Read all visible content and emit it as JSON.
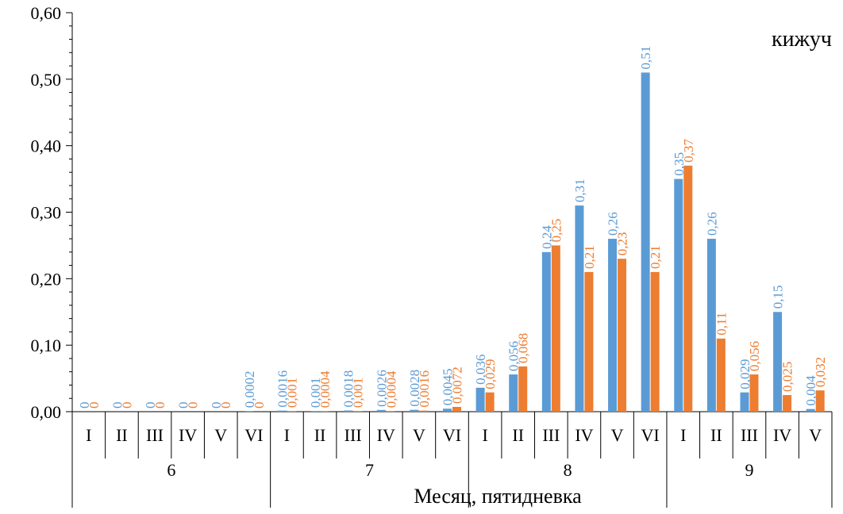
{
  "chart_data": {
    "type": "bar",
    "title": "кижуч",
    "xlabel": "Месяц, пятидневка",
    "ylabel": "",
    "ylim": [
      0,
      0.6
    ],
    "yticks": [
      "0,00",
      "0,10",
      "0,20",
      "0,30",
      "0,40",
      "0,50",
      "0,60"
    ],
    "yticks_values": [
      0,
      0.1,
      0.2,
      0.3,
      0.4,
      0.5,
      0.6
    ],
    "grid": false,
    "legend": "none",
    "categories": [
      "I",
      "II",
      "III",
      "IV",
      "V",
      "VI",
      "I",
      "II",
      "III",
      "IV",
      "V",
      "VI",
      "I",
      "II",
      "III",
      "IV",
      "V",
      "VI",
      "I",
      "II",
      "III",
      "IV",
      "V"
    ],
    "groups": [
      {
        "label": "6",
        "count": 6
      },
      {
        "label": "7",
        "count": 6
      },
      {
        "label": "8",
        "count": 6
      },
      {
        "label": "9",
        "count": 5
      }
    ],
    "series": [
      {
        "color": "#5B9BD5",
        "values": [
          0,
          0,
          0,
          0,
          0,
          0.0002,
          0.0016,
          0.001,
          0.0018,
          0.0026,
          0.0028,
          0.0045,
          0.036,
          0.056,
          0.24,
          0.31,
          0.26,
          0.51,
          0.35,
          0.26,
          0.029,
          0.15,
          0.004
        ],
        "labels": [
          "0",
          "0",
          "0",
          "0",
          "0",
          "0,0002",
          "0,0016",
          "0,001",
          "0,0018",
          "0,0026",
          "0,0028",
          "0,0045",
          "0,036",
          "0,056",
          "0,24",
          "0,31",
          "0,26",
          "0,51",
          "0,35",
          "0,26",
          "0,029",
          "0,15",
          "0,004"
        ]
      },
      {
        "color": "#ED7D31",
        "values": [
          0,
          0,
          0,
          0,
          0,
          0,
          0.001,
          0.0004,
          0.001,
          0.0004,
          0.0016,
          0.0072,
          0.029,
          0.068,
          0.25,
          0.21,
          0.23,
          0.21,
          0.37,
          0.11,
          0.056,
          0.025,
          0.032
        ],
        "labels": [
          "0",
          "0",
          "0",
          "0",
          "0",
          "0",
          "0,001",
          "0,0004",
          "0,001",
          "0,0004",
          "0,0016",
          "0,0072",
          "0,029",
          "0,068",
          "0,25",
          "0,21",
          "0,23",
          "0,21",
          "0,37",
          "0,11",
          "0,056",
          "0,025",
          "0,032"
        ]
      }
    ]
  }
}
